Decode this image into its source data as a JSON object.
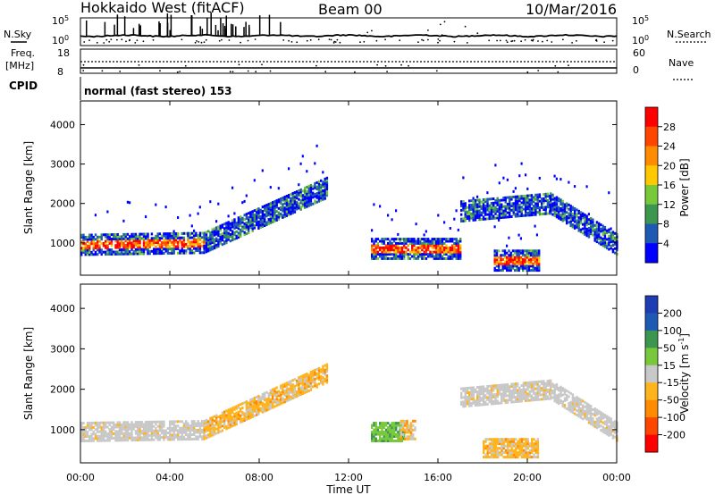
{
  "header": {
    "station": "Hokkaido West (fitACF)",
    "beam": "Beam 00",
    "date": "10/Mar/2016"
  },
  "noise_panel": {
    "left_label": "N.Sky",
    "right_label": "N.Search",
    "left_ticks": [
      "10^5",
      "10^0"
    ],
    "right_ticks": [
      "10^5",
      "10^0"
    ]
  },
  "freq_panel": {
    "left_label_top": "Freq.",
    "left_label_bottom": "[MHz]",
    "right_label": "Nave",
    "left_ticks": [
      "18",
      "8"
    ],
    "right_ticks": [
      "60",
      "0"
    ]
  },
  "cpid": {
    "label": "CPID",
    "value": "normal (fast stereo) 153"
  },
  "chart_data": [
    {
      "type": "heatmap",
      "title": "",
      "xlabel": "",
      "ylabel": "Slant Range [km]",
      "xlim": [
        "00:00",
        "24:00"
      ],
      "ylim": [
        180,
        4600
      ],
      "y_ticks": [
        1000,
        2000,
        3000,
        4000
      ],
      "colorbar": {
        "label": "Power [dB]",
        "ticks": [
          "4",
          "8",
          "12",
          "16",
          "20",
          "24",
          "28"
        ],
        "colors": [
          "#0000ff",
          "#1e5ab4",
          "#3c9650",
          "#78c83c",
          "#ffc800",
          "#ff8c00",
          "#ff4600",
          "#ff0000"
        ]
      },
      "bands": [
        {
          "t_start": 0.0,
          "t_end": 5.5,
          "range_center": [
            950,
            1000
          ],
          "level": "strong"
        },
        {
          "t_start": 5.5,
          "t_end": 11.0,
          "range_center": [
            1000,
            2400
          ],
          "level": "medium"
        },
        {
          "t_start": 13.0,
          "t_end": 17.0,
          "range_center": [
            850,
            850
          ],
          "level": "strong"
        },
        {
          "t_start": 17.0,
          "t_end": 21.0,
          "range_center": [
            1800,
            2000
          ],
          "level": "medium"
        },
        {
          "t_start": 21.0,
          "t_end": 24.0,
          "range_center": [
            2000,
            950
          ],
          "level": "medium"
        },
        {
          "t_start": 18.5,
          "t_end": 20.5,
          "range_center": [
            550,
            550
          ],
          "level": "strong"
        }
      ]
    },
    {
      "type": "heatmap",
      "title": "",
      "xlabel": "Time UT",
      "ylabel": "Slant Range [km]",
      "xlim": [
        "00:00",
        "24:00"
      ],
      "ylim": [
        180,
        4600
      ],
      "x_ticks": [
        "00:00",
        "04:00",
        "08:00",
        "12:00",
        "16:00",
        "20:00",
        "00:00"
      ],
      "y_ticks": [
        1000,
        2000,
        3000,
        4000
      ],
      "colorbar": {
        "label": "Velocity [m s^-1]",
        "ticks": [
          "200",
          "100",
          "50",
          "15",
          "-15",
          "-50",
          "-100",
          "-200"
        ],
        "colors": [
          "#1e3cb4",
          "#1e5ab4",
          "#3c9650",
          "#78c83c",
          "#c8c8c8",
          "#ffb41e",
          "#ff8c00",
          "#ff4600",
          "#ff0000"
        ]
      },
      "bands": [
        {
          "t_start": 0.0,
          "t_end": 5.5,
          "range_center": [
            950,
            1000
          ],
          "level": "ground"
        },
        {
          "t_start": 5.5,
          "t_end": 11.0,
          "range_center": [
            1000,
            2400
          ],
          "level": "neg"
        },
        {
          "t_start": 13.0,
          "t_end": 14.5,
          "range_center": [
            950,
            950
          ],
          "level": "pos"
        },
        {
          "t_start": 14.3,
          "t_end": 15.0,
          "range_center": [
            1000,
            1000
          ],
          "level": "neg"
        },
        {
          "t_start": 17.0,
          "t_end": 21.0,
          "range_center": [
            1800,
            2000
          ],
          "level": "ground"
        },
        {
          "t_start": 21.0,
          "t_end": 24.0,
          "range_center": [
            2000,
            950
          ],
          "level": "ground"
        },
        {
          "t_start": 18.0,
          "t_end": 20.5,
          "range_center": [
            550,
            550
          ],
          "level": "neg"
        }
      ]
    }
  ]
}
